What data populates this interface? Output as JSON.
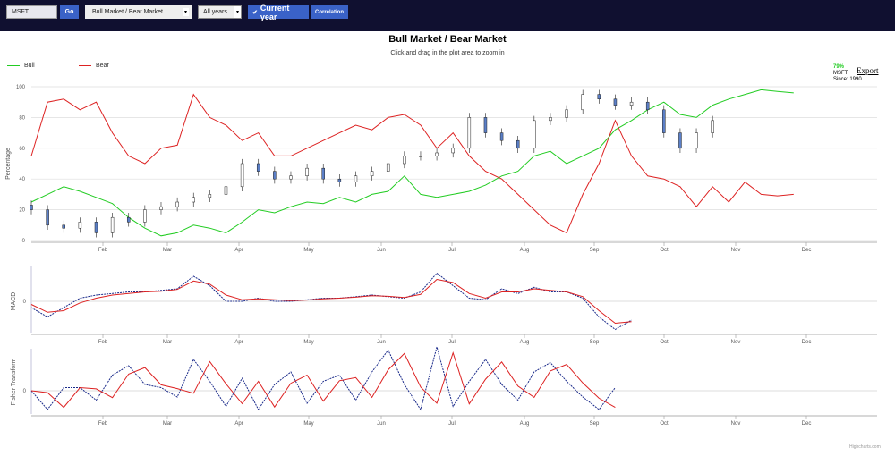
{
  "toolbar": {
    "symbol": "MSFT",
    "go": "Go",
    "indicator": "Bull Market / Bear Market",
    "years": "All years",
    "current_year": "Current year",
    "current_year_checked": true,
    "correlation": "Correlation"
  },
  "chart": {
    "title": "Bull Market / Bear Market",
    "subtitle": "Click and drag in the plot area to zoom in",
    "legend": [
      {
        "name": "Bull",
        "color": "#22cc22"
      },
      {
        "name": "Bear",
        "color": "#dd2222"
      }
    ],
    "info": {
      "pct": "79%",
      "symbol": "MSFT",
      "since": "Since: 1990"
    },
    "export": "Export",
    "credit": "Highcharts.com",
    "ylabel_main": "Percentage",
    "ylabel_macd": "MACD",
    "ylabel_fisher": "Fisher Transform",
    "yticks": [
      "0",
      "20",
      "40",
      "60",
      "80",
      "100"
    ],
    "macd_tick": "0",
    "fisher_tick": "0",
    "months": [
      "Feb",
      "Mar",
      "Apr",
      "May",
      "Jun",
      "Jul",
      "Aug",
      "Sep",
      "Oct",
      "Nov",
      "Dec"
    ]
  },
  "chart_data": {
    "type": "line",
    "x_start": "Jan 1",
    "step_days": 7,
    "ylim": [
      0,
      100
    ],
    "bull": [
      25,
      30,
      35,
      32,
      28,
      24,
      15,
      8,
      3,
      5,
      10,
      8,
      5,
      12,
      20,
      18,
      22,
      25,
      24,
      28,
      25,
      30,
      32,
      42,
      30,
      28,
      30,
      32,
      36,
      42,
      45,
      55,
      58,
      50,
      55,
      60,
      72,
      78,
      85,
      90,
      82,
      80,
      88,
      92,
      95,
      98,
      97,
      96
    ],
    "bear": [
      55,
      90,
      92,
      85,
      90,
      70,
      55,
      50,
      60,
      62,
      95,
      80,
      75,
      65,
      70,
      55,
      55,
      60,
      65,
      70,
      75,
      72,
      80,
      82,
      75,
      60,
      70,
      55,
      45,
      40,
      30,
      20,
      10,
      5,
      30,
      50,
      78,
      55,
      42,
      40,
      35,
      22,
      35,
      25,
      38,
      30,
      29,
      30
    ],
    "candles_close": [
      20,
      10,
      8,
      12,
      5,
      15,
      12,
      20,
      22,
      25,
      28,
      30,
      35,
      50,
      45,
      40,
      42,
      47,
      40,
      38,
      42,
      45,
      50,
      55,
      55,
      57,
      60,
      80,
      70,
      65,
      60,
      78,
      80,
      85,
      95,
      92,
      88,
      90,
      85,
      70,
      60,
      70,
      78
    ],
    "macd": [
      -0.2,
      -0.5,
      -0.2,
      0.1,
      0.2,
      0.25,
      0.3,
      0.3,
      0.35,
      0.4,
      0.8,
      0.5,
      0.0,
      0.0,
      0.1,
      0.0,
      0.0,
      0.05,
      0.1,
      0.1,
      0.15,
      0.2,
      0.15,
      0.1,
      0.3,
      0.9,
      0.5,
      0.1,
      0.05,
      0.4,
      0.25,
      0.45,
      0.3,
      0.3,
      0.1,
      -0.5,
      -0.9,
      -0.6
    ],
    "signal": [
      -0.1,
      -0.35,
      -0.3,
      -0.05,
      0.1,
      0.2,
      0.25,
      0.3,
      0.32,
      0.38,
      0.65,
      0.55,
      0.2,
      0.05,
      0.08,
      0.05,
      0.02,
      0.04,
      0.08,
      0.1,
      0.13,
      0.18,
      0.16,
      0.12,
      0.22,
      0.7,
      0.6,
      0.25,
      0.1,
      0.3,
      0.3,
      0.4,
      0.35,
      0.3,
      0.15,
      -0.3,
      -0.7,
      -0.65
    ],
    "fisher": [
      0,
      -0.6,
      0.1,
      0.1,
      -0.3,
      0.5,
      0.8,
      0.2,
      0.1,
      -0.2,
      1.0,
      0.3,
      -0.5,
      0.4,
      -0.6,
      0.2,
      0.6,
      -0.4,
      0.3,
      0.5,
      -0.3,
      0.6,
      1.3,
      0.2,
      -0.6,
      1.4,
      -0.5,
      0.3,
      1.0,
      0.2,
      -0.3,
      0.6,
      0.9,
      0.3,
      -0.2,
      -0.6,
      0.1
    ]
  }
}
